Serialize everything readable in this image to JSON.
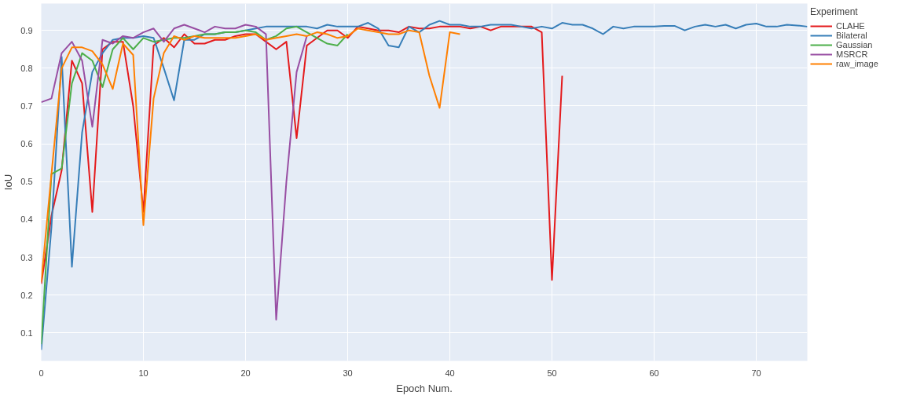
{
  "chart_data": {
    "type": "line",
    "xlabel": "Epoch Num.",
    "ylabel": "IoU",
    "legend_title": "Experiment",
    "legend": "top right",
    "grid": true,
    "marker": "none",
    "line_style": "solid",
    "x": [
      0,
      1,
      2,
      3,
      4,
      5,
      6,
      7,
      8,
      9,
      10,
      11,
      12,
      13,
      14,
      15,
      16,
      17,
      18,
      19,
      20,
      21,
      22,
      23,
      24,
      25,
      26,
      27,
      28,
      29,
      30,
      31,
      32,
      33,
      34,
      35,
      36,
      37,
      38,
      39,
      40,
      41,
      42,
      43,
      44,
      45,
      46,
      47,
      48,
      49,
      50,
      51,
      52,
      53,
      54,
      55,
      56,
      57,
      58,
      59,
      60,
      61,
      62,
      63,
      64,
      65,
      66,
      67,
      68,
      69,
      70,
      71,
      72,
      73,
      74,
      75
    ],
    "xlim": [
      0,
      75
    ],
    "xticks": [
      0,
      10,
      20,
      30,
      40,
      50,
      60,
      70
    ],
    "ylim": [
      0.026,
      0.971
    ],
    "yticks": [
      0.1,
      0.2,
      0.3,
      0.4,
      0.5,
      0.6,
      0.7,
      0.8,
      0.9
    ],
    "series": [
      {
        "name": "CLAHE",
        "color": "#e41a1c",
        "values": [
          0.23,
          0.41,
          0.53,
          0.82,
          0.76,
          0.42,
          0.85,
          0.87,
          0.87,
          0.7,
          0.42,
          0.86,
          0.88,
          0.855,
          0.89,
          0.865,
          0.865,
          0.875,
          0.875,
          0.885,
          0.89,
          0.89,
          0.87,
          0.85,
          0.87,
          0.615,
          0.86,
          0.88,
          0.9,
          0.9,
          0.88,
          0.91,
          0.905,
          0.9,
          0.9,
          0.895,
          0.91,
          0.905,
          0.905,
          0.91,
          0.91,
          0.91,
          0.905,
          0.91,
          0.9,
          0.91,
          0.91,
          0.91,
          0.91,
          0.895,
          0.24,
          0.78,
          null,
          null,
          null,
          null,
          null,
          null,
          null,
          null,
          null,
          null,
          null,
          null,
          null,
          null,
          null,
          null,
          null,
          null,
          null,
          null,
          null,
          null,
          null,
          null
        ]
      },
      {
        "name": "Bilateral",
        "color": "#377eb8",
        "values": [
          0.055,
          0.38,
          0.83,
          0.275,
          0.63,
          0.79,
          0.84,
          0.875,
          0.88,
          0.88,
          0.885,
          0.88,
          0.8,
          0.715,
          0.875,
          0.875,
          0.89,
          0.89,
          0.895,
          0.895,
          0.9,
          0.905,
          0.91,
          0.91,
          0.91,
          0.91,
          0.91,
          0.905,
          0.915,
          0.91,
          0.91,
          0.91,
          0.92,
          0.905,
          0.86,
          0.855,
          0.91,
          0.895,
          0.915,
          0.925,
          0.915,
          0.915,
          0.91,
          0.91,
          0.915,
          0.915,
          0.915,
          0.91,
          0.905,
          0.91,
          0.905,
          0.92,
          0.915,
          0.915,
          0.905,
          0.89,
          0.91,
          0.905,
          0.91,
          0.91,
          0.91,
          0.912,
          0.912,
          0.9,
          0.91,
          0.915,
          0.91,
          0.915,
          0.905,
          0.915,
          0.918,
          0.91,
          0.91,
          0.915,
          0.913,
          0.91
        ]
      },
      {
        "name": "Gaussian",
        "color": "#4daf4a",
        "values": [
          0.07,
          0.52,
          0.535,
          0.76,
          0.84,
          0.82,
          0.75,
          0.85,
          0.88,
          0.85,
          0.88,
          0.87,
          0.875,
          0.88,
          0.88,
          0.885,
          0.89,
          0.89,
          0.895,
          0.895,
          0.9,
          0.895,
          0.875,
          0.885,
          0.905,
          0.91,
          0.895,
          0.88,
          0.865,
          0.86,
          0.89,
          null,
          null,
          null,
          null,
          null,
          null,
          null,
          null,
          null,
          null,
          null,
          null,
          null,
          null,
          null,
          null,
          null,
          null,
          null,
          null,
          null,
          null,
          null,
          null,
          null,
          null,
          null,
          null,
          null,
          null,
          null,
          null,
          null,
          null,
          null,
          null,
          null,
          null,
          null,
          null,
          null,
          null,
          null,
          null,
          null
        ]
      },
      {
        "name": "MSRCR",
        "color": "#984ea3",
        "values": [
          0.71,
          0.72,
          0.84,
          0.87,
          0.82,
          0.645,
          0.875,
          0.865,
          0.885,
          0.88,
          0.895,
          0.905,
          0.87,
          0.905,
          0.915,
          0.905,
          0.895,
          0.91,
          0.905,
          0.905,
          0.915,
          0.91,
          0.89,
          0.135,
          0.5,
          0.79,
          0.885,
          null,
          null,
          null,
          null,
          null,
          null,
          null,
          null,
          null,
          null,
          null,
          null,
          null,
          null,
          null,
          null,
          null,
          null,
          null,
          null,
          null,
          null,
          null,
          null,
          null,
          null,
          null,
          null,
          null,
          null,
          null,
          null,
          null,
          null,
          null,
          null,
          null,
          null,
          null,
          null,
          null,
          null,
          null,
          null,
          null,
          null,
          null,
          null,
          null
        ]
      },
      {
        "name": "raw_image",
        "color": "#ff7f00",
        "values": [
          0.235,
          0.52,
          0.8,
          0.855,
          0.855,
          0.845,
          0.81,
          0.745,
          0.865,
          0.835,
          0.385,
          0.72,
          0.84,
          0.885,
          0.875,
          0.885,
          0.88,
          0.88,
          0.88,
          0.88,
          0.885,
          0.89,
          0.875,
          0.88,
          0.885,
          0.89,
          0.885,
          0.895,
          0.89,
          0.88,
          0.885,
          0.905,
          0.9,
          0.895,
          0.89,
          0.89,
          0.9,
          0.895,
          0.78,
          0.695,
          0.895,
          0.89,
          null,
          null,
          null,
          null,
          null,
          null,
          null,
          null,
          null,
          null,
          null,
          null,
          null,
          null,
          null,
          null,
          null,
          null,
          null,
          null,
          null,
          null,
          null,
          null,
          null,
          null,
          null,
          null,
          null,
          null,
          null,
          null,
          null,
          null
        ]
      }
    ]
  }
}
